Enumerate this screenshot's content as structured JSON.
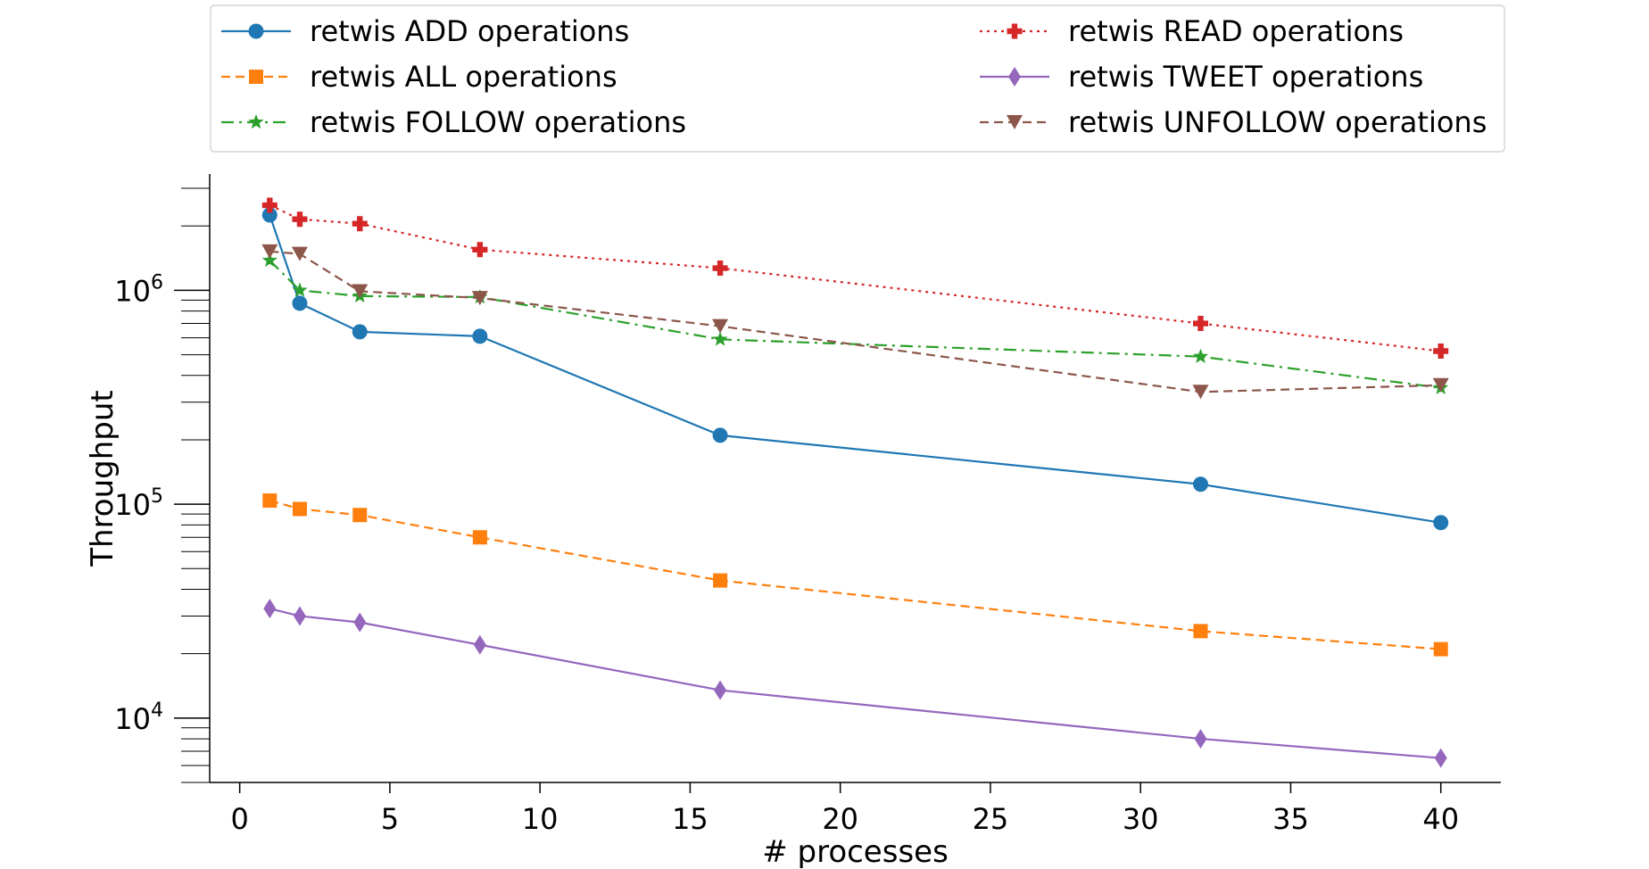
{
  "chart_data": {
    "type": "line",
    "title": "",
    "xlabel": "# processes",
    "ylabel": "Throughput",
    "xscale": "linear",
    "yscale": "log",
    "xlim": [
      -1,
      42
    ],
    "ylim": [
      5000,
      3500000
    ],
    "xticks": [
      0,
      5,
      10,
      15,
      20,
      25,
      30,
      35,
      40
    ],
    "yticks": [
      {
        "value": 10000,
        "base": "10",
        "exp": "4"
      },
      {
        "value": 100000,
        "base": "10",
        "exp": "5"
      },
      {
        "value": 1000000,
        "base": "10",
        "exp": "6"
      }
    ],
    "grid": false,
    "legend_position": "top",
    "x": [
      1,
      2,
      4,
      8,
      16,
      32,
      40
    ],
    "series": [
      {
        "name": "retwis ADD operations",
        "color": "#1f77b4",
        "dash": "solid",
        "marker": "circle",
        "values": [
          2250000,
          870000,
          640000,
          610000,
          210000,
          124000,
          82000
        ]
      },
      {
        "name": "retwis ALL operations",
        "color": "#ff7f0e",
        "dash": "dashed",
        "marker": "square",
        "values": [
          104000,
          95000,
          89000,
          70000,
          44000,
          25500,
          21000
        ]
      },
      {
        "name": "retwis FOLLOW operations",
        "color": "#2ca02c",
        "dash": "dashdot",
        "marker": "star",
        "values": [
          1380000,
          1000000,
          940000,
          930000,
          590000,
          490000,
          350000
        ]
      },
      {
        "name": "retwis READ operations",
        "color": "#d62728",
        "dash": "dotted",
        "marker": "plus",
        "values": [
          2500000,
          2150000,
          2050000,
          1550000,
          1270000,
          700000,
          520000
        ]
      },
      {
        "name": "retwis TWEET operations",
        "color": "#9467bd",
        "dash": "solid",
        "marker": "diamond",
        "values": [
          32500,
          30000,
          28000,
          22000,
          13500,
          8000,
          6500
        ]
      },
      {
        "name": "retwis UNFOLLOW operations",
        "color": "#8c564b",
        "dash": "dashed",
        "marker": "triangle-down",
        "values": [
          1520000,
          1480000,
          990000,
          920000,
          680000,
          335000,
          360000
        ]
      }
    ]
  }
}
